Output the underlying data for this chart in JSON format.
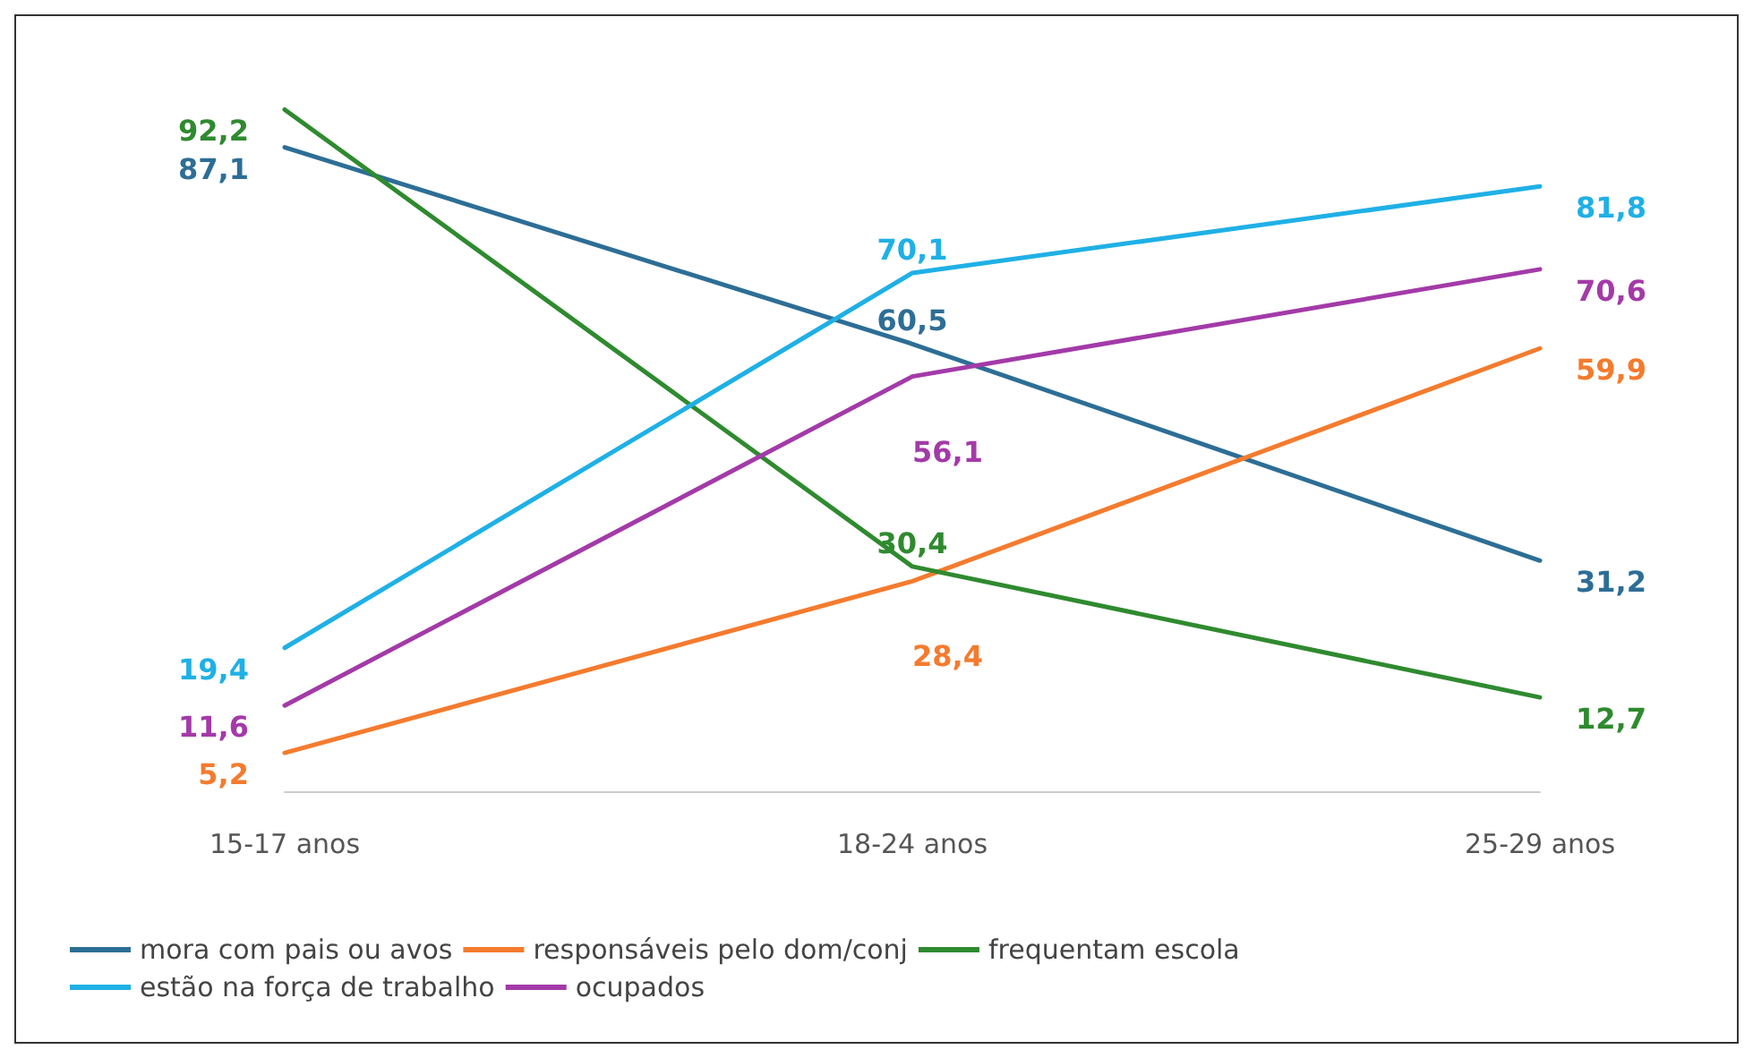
{
  "chart_data": {
    "type": "line",
    "categories": [
      "15-17 anos",
      "18-24 anos",
      "25-29 anos"
    ],
    "series": [
      {
        "name": "mora com pais ou avos",
        "color": "#2d6e96",
        "values": [
          87.1,
          60.5,
          31.2
        ],
        "value_labels": [
          "87,1",
          "60,5",
          "31,2"
        ]
      },
      {
        "name": "responsáveis pelo dom/conj",
        "color": "#f47b2e",
        "values": [
          5.2,
          28.4,
          59.9
        ],
        "value_labels": [
          "5,2",
          "28,4",
          "59,9"
        ]
      },
      {
        "name": "frequentam escola",
        "color": "#2f8a2f",
        "values": [
          92.2,
          30.4,
          12.7
        ],
        "value_labels": [
          "92,2",
          "30,4",
          "12,7"
        ]
      },
      {
        "name": "estão na força de trabalho",
        "color": "#1fb0e6",
        "values": [
          19.4,
          70.1,
          81.8
        ],
        "value_labels": [
          "19,4",
          "70,1",
          "81,8"
        ]
      },
      {
        "name": "ocupados",
        "color": "#a33aa8",
        "values": [
          11.6,
          56.1,
          70.6
        ],
        "value_labels": [
          "11,6",
          "56,1",
          "70,6"
        ]
      }
    ],
    "grid": false,
    "legend": "bottom",
    "marker": "none",
    "line_style": "solid",
    "tick_labels": "x"
  }
}
